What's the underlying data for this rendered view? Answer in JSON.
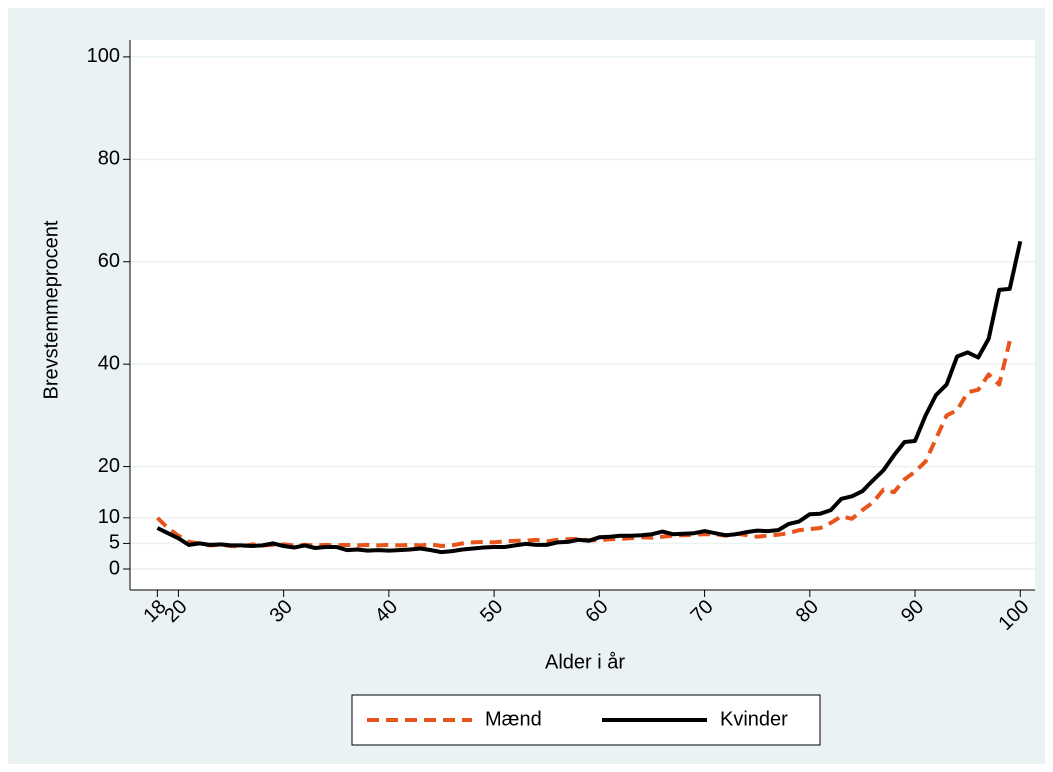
{
  "chart_data": {
    "type": "line",
    "x_label": "Alder i år",
    "y_label": "Brevstemmeprocent",
    "x": [
      18,
      19,
      20,
      21,
      22,
      23,
      24,
      25,
      26,
      27,
      28,
      29,
      30,
      31,
      32,
      33,
      34,
      35,
      36,
      37,
      38,
      39,
      40,
      41,
      42,
      43,
      44,
      45,
      46,
      47,
      48,
      49,
      50,
      51,
      52,
      53,
      54,
      55,
      56,
      57,
      58,
      59,
      60,
      61,
      62,
      63,
      64,
      65,
      66,
      67,
      68,
      69,
      70,
      71,
      72,
      73,
      74,
      75,
      76,
      77,
      78,
      79,
      80,
      81,
      82,
      83,
      84,
      85,
      86,
      87,
      88,
      89,
      90,
      91,
      92,
      93,
      94,
      95,
      96,
      97,
      98,
      99,
      100
    ],
    "series": [
      {
        "name": "Mænd",
        "color": "#e8541c",
        "dash": true,
        "values": [
          10,
          8,
          6.5,
          5.3,
          5,
          4.6,
          4.7,
          4.5,
          4.4,
          4.8,
          4.6,
          4.7,
          4.8,
          4.6,
          4.7,
          4.6,
          4.7,
          4.6,
          4.7,
          4.6,
          4.7,
          4.6,
          4.7,
          4.6,
          4.7,
          4.6,
          4.8,
          4.5,
          4.6,
          5.0,
          5.2,
          5.3,
          5.2,
          5.4,
          5.5,
          5.5,
          5.7,
          5.4,
          5.7,
          5.8,
          5.9,
          5.6,
          5.6,
          5.8,
          5.9,
          6.0,
          6.2,
          6.1,
          6.3,
          6.5,
          6.6,
          6.7,
          6.8,
          6.8,
          6.5,
          6.9,
          6.6,
          6.3,
          6.5,
          6.7,
          7.0,
          7.6,
          7.8,
          8.0,
          9,
          10.3,
          9.8,
          11.5,
          13,
          15.5,
          15,
          17.5,
          19,
          21,
          25.5,
          30,
          31,
          34.5,
          35,
          38,
          36,
          44.5,
          null
        ]
      },
      {
        "name": "Kvinder",
        "color": "#000000",
        "dash": false,
        "values": [
          8,
          7,
          6,
          4.7,
          5,
          4.7,
          4.8,
          4.6,
          4.6,
          4.5,
          4.6,
          5.0,
          4.5,
          4.2,
          4.6,
          4.1,
          4.3,
          4.3,
          3.7,
          3.8,
          3.6,
          3.7,
          3.6,
          3.7,
          3.8,
          4.0,
          3.7,
          3.3,
          3.5,
          3.8,
          4.0,
          4.2,
          4.3,
          4.3,
          4.6,
          4.9,
          4.7,
          4.7,
          5.2,
          5.3,
          5.7,
          5.5,
          6.2,
          6.3,
          6.5,
          6.5,
          6.6,
          6.8,
          7.3,
          6.8,
          6.9,
          7.0,
          7.4,
          7.0,
          6.6,
          6.8,
          7.2,
          7.5,
          7.4,
          7.6,
          8.8,
          9.3,
          10.7,
          10.8,
          11.5,
          13.7,
          14.2,
          15.2,
          17.3,
          19.3,
          22.2,
          24.8,
          25,
          30,
          34,
          36,
          41.5,
          42.3,
          41.3,
          45,
          54.5,
          54.7,
          64
        ]
      }
    ],
    "xlim": [
      15.4,
      101.4
    ],
    "ylim": [
      -4.1,
      103.3
    ],
    "xticks": [
      18,
      20,
      30,
      40,
      50,
      60,
      70,
      80,
      90,
      100
    ],
    "yticks": [
      0,
      5,
      10,
      20,
      40,
      60,
      80,
      100
    ],
    "grid": true,
    "legend": "bottom"
  }
}
